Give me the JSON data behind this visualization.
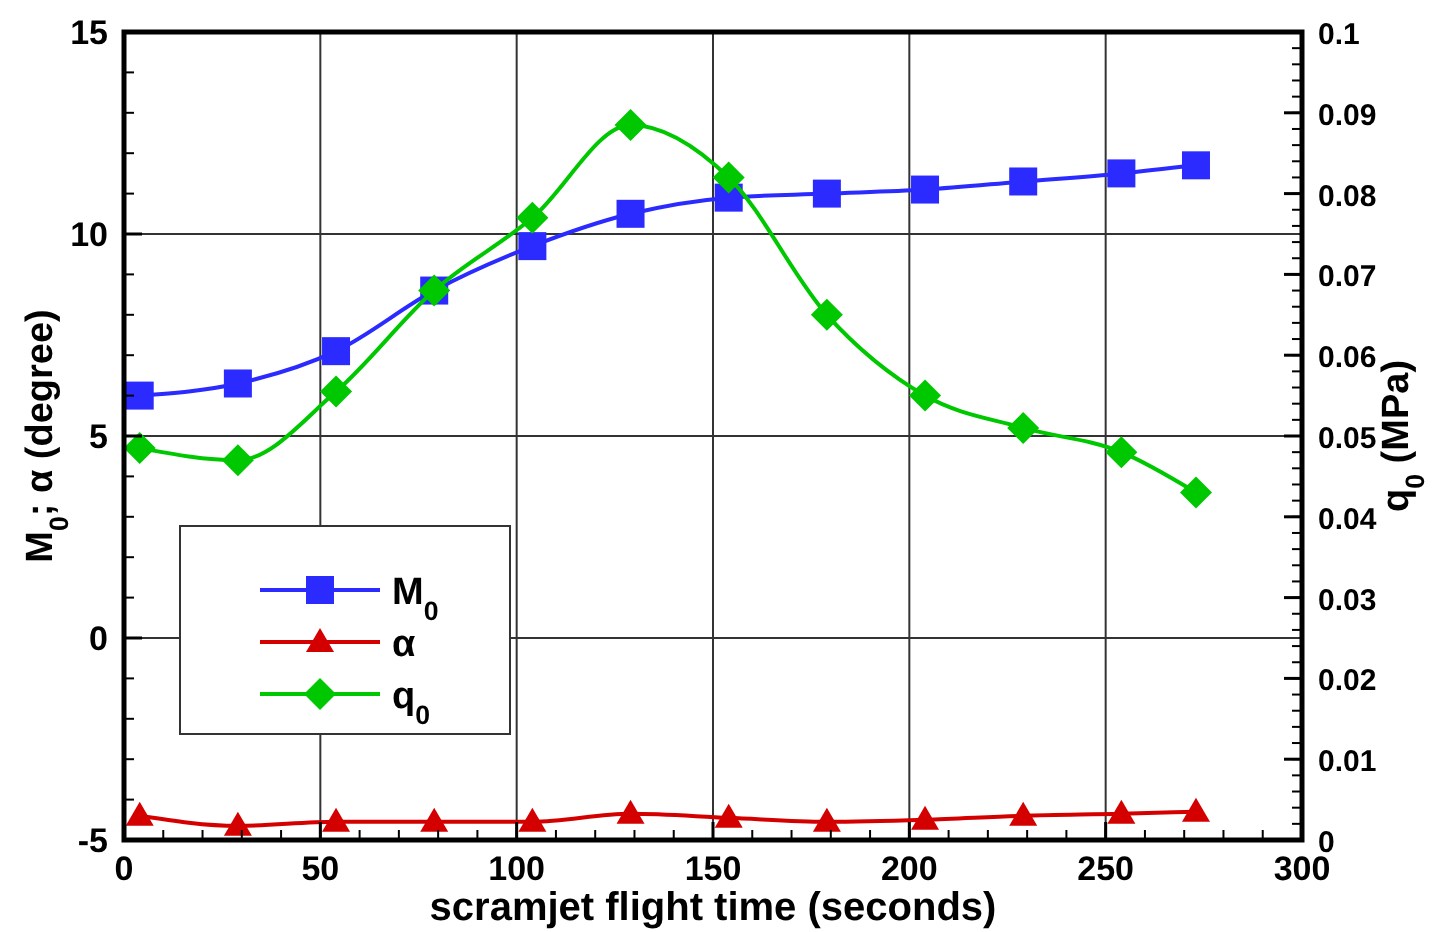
{
  "chart_data": {
    "type": "line",
    "xlabel": "scramjet flight time (seconds)",
    "ylabel": "M$_{0}$; α (degree)",
    "y2label": "q$_{0}$ (MPa)",
    "xlim": [
      0,
      300
    ],
    "xticks": [
      0,
      50,
      100,
      150,
      200,
      250,
      300
    ],
    "ylim": [
      -5,
      15
    ],
    "yticks": [
      -5,
      0,
      5,
      10,
      15
    ],
    "y2lim": [
      0,
      0.1
    ],
    "y2ticks": [
      0,
      0.01,
      0.02,
      0.03,
      0.04,
      0.05,
      0.06,
      0.07,
      0.08,
      0.09,
      0.1
    ],
    "grid": true,
    "legend": "left",
    "line_style": "solid",
    "series": [
      {
        "name": "M$_{0}$",
        "color": "#2b2bff",
        "marker": "square",
        "x": [
          4,
          29,
          54,
          79,
          104,
          129,
          154,
          179,
          204,
          229,
          254,
          273
        ],
        "values": [
          6.0,
          6.3,
          7.1,
          8.6,
          9.7,
          10.5,
          10.9,
          11.0,
          11.1,
          11.3,
          11.5,
          11.7
        ]
      },
      {
        "name": "α",
        "color": "#d40000",
        "marker": "triangle",
        "x": [
          4,
          29,
          54,
          79,
          104,
          129,
          154,
          179,
          204,
          229,
          254,
          273
        ],
        "values": [
          -4.4,
          -4.65,
          -4.55,
          -4.55,
          -4.55,
          -4.35,
          -4.45,
          -4.55,
          -4.5,
          -4.4,
          -4.35,
          -4.3
        ]
      },
      {
        "name": "q$_{0}$",
        "color": "#00c800",
        "marker": "diamond",
        "axis": "y2",
        "x": [
          4,
          29,
          54,
          79,
          104,
          129,
          154,
          179,
          204,
          229,
          254,
          273
        ],
        "values": [
          0.0485,
          0.047,
          0.0555,
          0.068,
          0.077,
          0.0885,
          0.082,
          0.065,
          0.055,
          0.051,
          0.048,
          0.043
        ]
      }
    ]
  }
}
